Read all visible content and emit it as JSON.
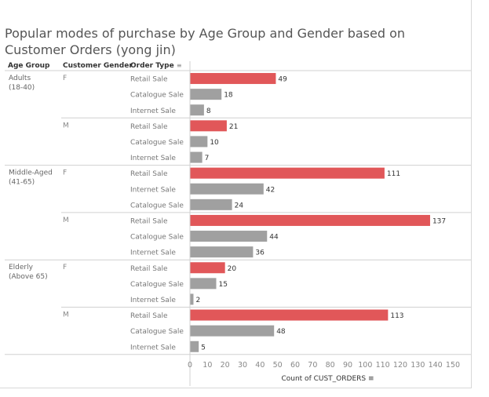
{
  "title": "Popular modes of purchase by Age Group and Gender based on Customer Orders (yong jin)",
  "headers": {
    "age_group": "Age Group",
    "gender": "Customer Gender",
    "order_type": "Order Type",
    "sort_icon": "filter-sort-icon"
  },
  "colors": {
    "highlight": "#e15759",
    "default": "#a0a0a0",
    "text": "#666666",
    "grid": "#d0d0d0"
  },
  "chart_data": {
    "type": "bar",
    "orientation": "horizontal",
    "xlabel": "Count of CUST_ORDERS",
    "xlim": [
      0,
      150
    ],
    "xticks": [
      0,
      10,
      20,
      30,
      40,
      50,
      60,
      70,
      80,
      90,
      100,
      110,
      120,
      130,
      140,
      150
    ],
    "groups": [
      {
        "age_group": "Adults",
        "age_range": "(18-40)",
        "genders": [
          {
            "gender": "F",
            "rows": [
              {
                "order_type": "Retail Sale",
                "value": 49
              },
              {
                "order_type": "Catalogue Sale",
                "value": 18
              },
              {
                "order_type": "Internet Sale",
                "value": 8
              }
            ]
          },
          {
            "gender": "M",
            "rows": [
              {
                "order_type": "Retail Sale",
                "value": 21
              },
              {
                "order_type": "Catalogue Sale",
                "value": 10
              },
              {
                "order_type": "Internet Sale",
                "value": 7
              }
            ]
          }
        ]
      },
      {
        "age_group": "Middle-Aged",
        "age_range": "(41-65)",
        "genders": [
          {
            "gender": "F",
            "rows": [
              {
                "order_type": "Retail Sale",
                "value": 111
              },
              {
                "order_type": "Internet Sale",
                "value": 42
              },
              {
                "order_type": "Catalogue Sale",
                "value": 24
              }
            ]
          },
          {
            "gender": "M",
            "rows": [
              {
                "order_type": "Retail Sale",
                "value": 137
              },
              {
                "order_type": "Catalogue Sale",
                "value": 44
              },
              {
                "order_type": "Internet Sale",
                "value": 36
              }
            ]
          }
        ]
      },
      {
        "age_group": "Elderly",
        "age_range": "(Above 65)",
        "genders": [
          {
            "gender": "F",
            "rows": [
              {
                "order_type": "Retail Sale",
                "value": 20
              },
              {
                "order_type": "Catalogue Sale",
                "value": 15
              },
              {
                "order_type": "Internet Sale",
                "value": 2
              }
            ]
          },
          {
            "gender": "M",
            "rows": [
              {
                "order_type": "Retail Sale",
                "value": 113
              },
              {
                "order_type": "Catalogue Sale",
                "value": 48
              },
              {
                "order_type": "Internet Sale",
                "value": 5
              }
            ]
          }
        ]
      }
    ]
  }
}
